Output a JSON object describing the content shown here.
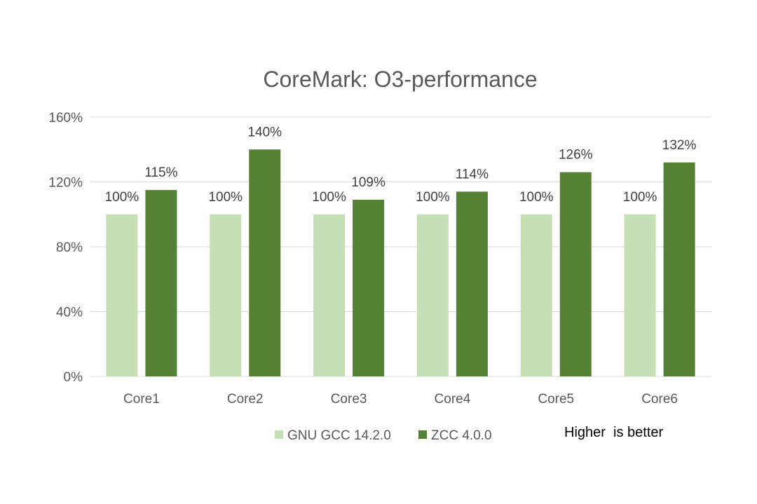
{
  "chart_data": {
    "type": "bar",
    "title": "CoreMark: O3-performance",
    "categories": [
      "Core1",
      "Core2",
      "Core3",
      "Core4",
      "Core5",
      "Core6"
    ],
    "series": [
      {
        "name": "GNU GCC 14.2.0",
        "color": "#c5e0b4",
        "values": [
          100,
          100,
          100,
          100,
          100,
          100
        ],
        "labels": [
          "100%",
          "100%",
          "100%",
          "100%",
          "100%",
          "100%"
        ]
      },
      {
        "name": "ZCC 4.0.0",
        "color": "#548235",
        "values": [
          115,
          140,
          109,
          114,
          126,
          132
        ],
        "labels": [
          "115%",
          "140%",
          "109%",
          "114%",
          "126%",
          "132%"
        ]
      }
    ],
    "ylim": [
      0,
      160
    ],
    "yticks": [
      0,
      40,
      80,
      120,
      160
    ],
    "ytick_labels": [
      "0%",
      "40%",
      "80%",
      "120%",
      "160%"
    ],
    "xlabel": "",
    "ylabel": "",
    "grid": true,
    "legend_position": "bottom",
    "annotation": "Higher  is better"
  }
}
